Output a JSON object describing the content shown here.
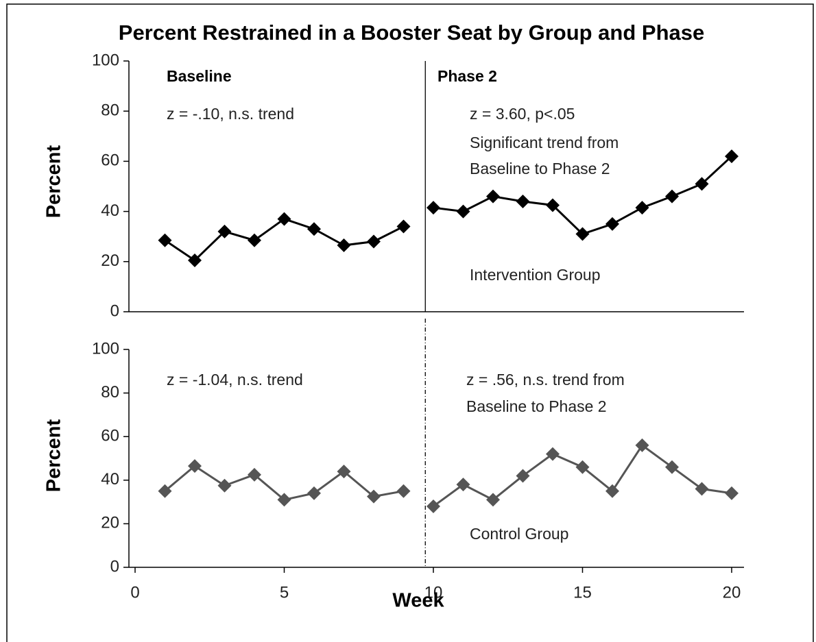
{
  "title": "Percent Restrained in a Booster Seat by Group and Phase",
  "chart_data": [
    {
      "type": "line",
      "ylabel": "Percent",
      "x": [
        1,
        2,
        3,
        4,
        5,
        6,
        7,
        8,
        9,
        10,
        11,
        12,
        13,
        14,
        15,
        16,
        17,
        18,
        19,
        20
      ],
      "values": [
        28.5,
        20.5,
        32,
        28.5,
        37,
        33,
        26.5,
        28,
        34,
        41.5,
        40,
        46,
        44,
        42.5,
        31,
        35,
        41.5,
        46,
        51,
        62
      ],
      "color": "#000000",
      "phase_change_x": 9.73,
      "phase_line": "solid",
      "xlim": [
        0,
        20
      ],
      "ylim": [
        0,
        100
      ],
      "yticks": [
        0,
        20,
        40,
        60,
        80,
        100
      ],
      "phase_labels": [
        "Baseline",
        "Phase 2"
      ],
      "annotations": [
        "z = -.10, n.s. trend",
        "z = 3.60, p<.05",
        "Significant trend from",
        "Baseline to Phase 2",
        "Intervention Group"
      ]
    },
    {
      "type": "line",
      "ylabel": "Percent",
      "xlabel": "Week",
      "x": [
        1,
        2,
        3,
        4,
        5,
        6,
        7,
        8,
        9,
        10,
        11,
        12,
        13,
        14,
        15,
        16,
        17,
        18,
        19,
        20
      ],
      "values": [
        35,
        46.5,
        37.5,
        42.5,
        31,
        34,
        44,
        32.5,
        35,
        28,
        38,
        31,
        42,
        52,
        46,
        35,
        56,
        46,
        36,
        34
      ],
      "color": "#555555",
      "phase_change_x": 9.73,
      "phase_line": "dashdot",
      "xlim": [
        0,
        20
      ],
      "xticks": [
        0,
        5,
        10,
        15,
        20
      ],
      "ylim": [
        0,
        100
      ],
      "yticks": [
        0,
        20,
        40,
        60,
        80,
        100
      ],
      "annotations": [
        "z = -1.04, n.s. trend",
        "z = .56, n.s. trend from",
        "Baseline to Phase 2",
        "Control Group"
      ]
    }
  ]
}
